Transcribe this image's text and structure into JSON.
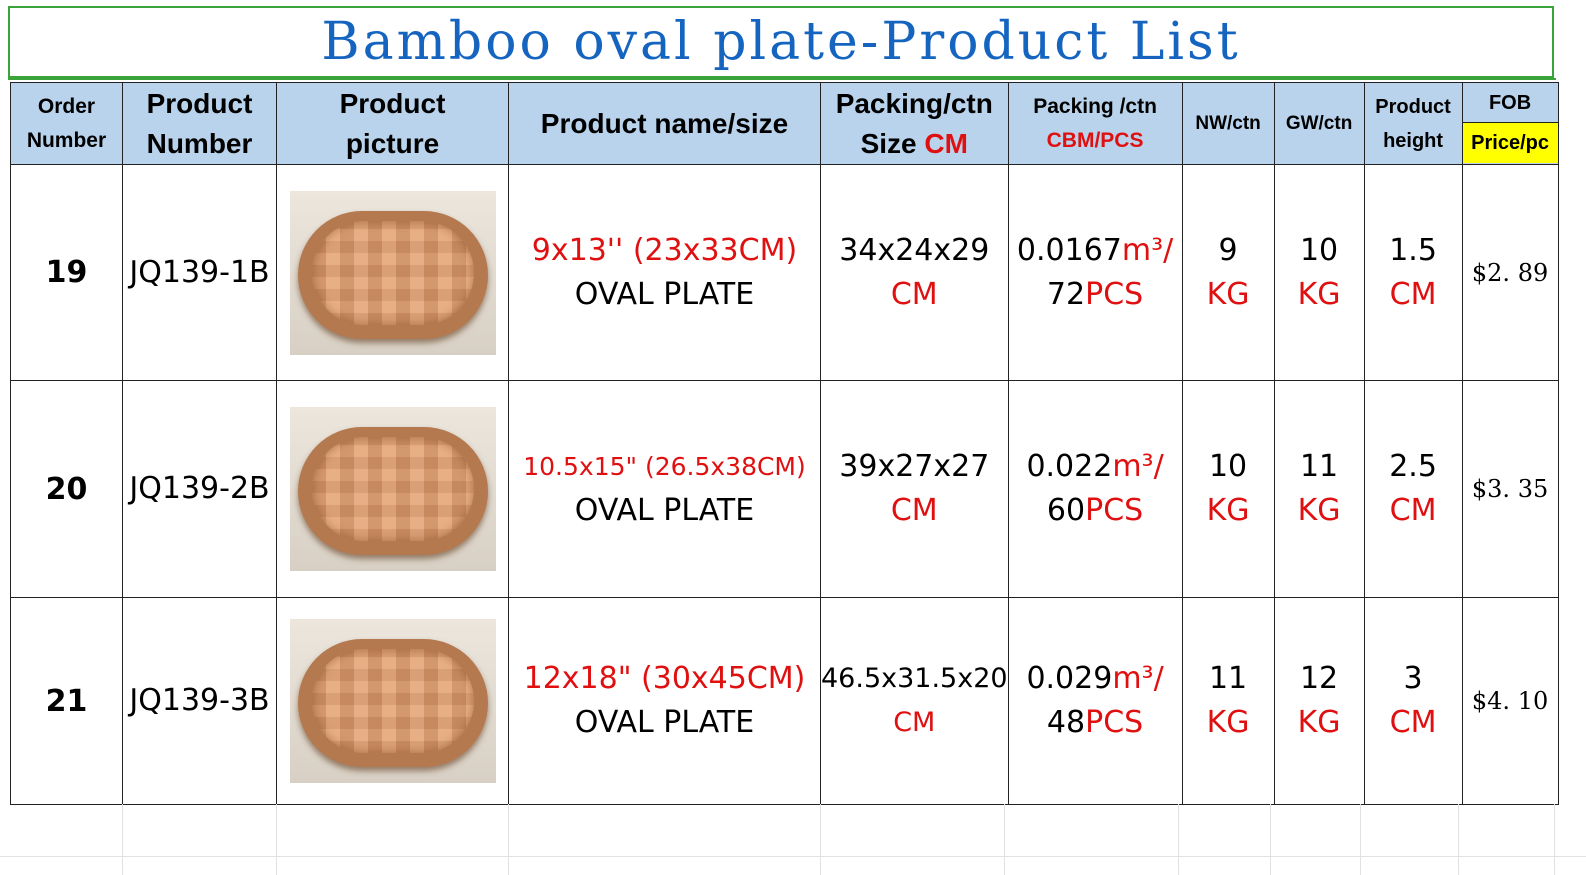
{
  "title": "Bamboo oval plate-Product List",
  "headers": {
    "order_l1": "Order",
    "order_l2": "Number",
    "product_number_l1": "Product",
    "product_number_l2": "Number",
    "picture_l1": "Product",
    "picture_l2": "picture",
    "name_size": "Product name/size",
    "packing_l1": "Packing/ctn",
    "packing_l2a": "Size ",
    "packing_l2b": "CM",
    "cbm_l1": "Packing /ctn",
    "cbm_l2": "CBM/PCS",
    "nw": "NW/ctn",
    "gw": "GW/ctn",
    "height_l1": "Product",
    "height_l2": "height",
    "fob": "FOB",
    "price": "Price/pc"
  },
  "rows": [
    {
      "order": "19",
      "product_number": "JQ139-1B",
      "size": "9x13''  (23x33CM)",
      "name": "OVAL  PLATE",
      "carton": "34x24x29",
      "carton_unit": "CM",
      "cbm": "0.0167",
      "cbm_unit": "m³/",
      "pcs": "72",
      "pcs_unit": "PCS",
      "nw": "9",
      "nw_unit": "KG",
      "gw": "10",
      "gw_unit": "KG",
      "height": "1.5",
      "height_unit": "CM",
      "price": "$2. 89"
    },
    {
      "order": "20",
      "product_number": "JQ139-2B",
      "size": "10.5x15\"  (26.5x38CM)",
      "name": "OVAL  PLATE",
      "carton": "39x27x27",
      "carton_unit": "CM",
      "cbm": "0.022",
      "cbm_unit": "m³/",
      "pcs": "60",
      "pcs_unit": "PCS",
      "nw": "10",
      "nw_unit": "KG",
      "gw": "11",
      "gw_unit": "KG",
      "height": "2.5",
      "height_unit": "CM",
      "price": "$3. 35"
    },
    {
      "order": "21",
      "product_number": "JQ139-3B",
      "size": "12x18\"  (30x45CM)",
      "name": "OVAL  PLATE",
      "carton": "46.5x31.5x20",
      "carton_unit": "CM",
      "cbm": "0.029",
      "cbm_unit": "m³/",
      "pcs": "48",
      "pcs_unit": "PCS",
      "nw": "11",
      "nw_unit": "KG",
      "gw": "12",
      "gw_unit": "KG",
      "height": "3",
      "height_unit": "CM",
      "price": "$4. 10"
    }
  ],
  "colors": {
    "title": "#1565c0",
    "header_bg": "#b9d3ec",
    "accent_red": "#e01010",
    "price_header": "#ffff00",
    "frame_green": "#3aa33a"
  },
  "icons": [
    "oval-bamboo-plate-photo"
  ]
}
